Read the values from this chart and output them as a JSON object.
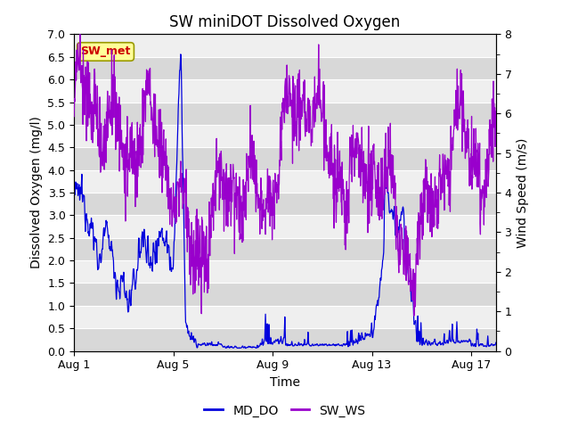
{
  "title": "SW miniDOT Dissolved Oxygen",
  "ylabel_left": "Dissolved Oxygen (mg/l)",
  "ylabel_right": "Wind Speed (m/s)",
  "xlabel": "Time",
  "ylim_left": [
    0.0,
    7.0
  ],
  "ylim_right": [
    0.0,
    8.0
  ],
  "yticks_left": [
    0.0,
    0.5,
    1.0,
    1.5,
    2.0,
    2.5,
    3.0,
    3.5,
    4.0,
    4.5,
    5.0,
    5.5,
    6.0,
    6.5,
    7.0
  ],
  "yticks_right": [
    0.0,
    1.0,
    2.0,
    3.0,
    4.0,
    5.0,
    6.0,
    7.0,
    8.0
  ],
  "xtick_labels": [
    "Aug 1",
    "Aug 5",
    "Aug 9",
    "Aug 13",
    "Aug 17"
  ],
  "xtick_positions": [
    0,
    4,
    8,
    12,
    16
  ],
  "color_DO": "#0000dd",
  "color_WS": "#9900cc",
  "legend_labels": [
    "MD_DO",
    "SW_WS"
  ],
  "annotation_text": "SW_met",
  "annotation_color": "#cc0000",
  "annotation_bg": "#ffff99",
  "annotation_edge": "#999900",
  "bg_color": "#ffffff",
  "plot_bg_color": "#e8e8e8",
  "band_color_dark": "#d8d8d8",
  "band_color_light": "#efefef",
  "grid_color": "#ffffff",
  "title_fontsize": 12,
  "label_fontsize": 10,
  "tick_fontsize": 9,
  "legend_fontsize": 10,
  "n_days": 17,
  "n_points": 1200
}
